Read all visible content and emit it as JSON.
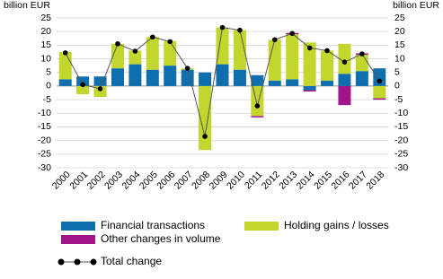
{
  "chart_data": {
    "type": "bar",
    "stacked": true,
    "y_label": "billion EUR",
    "y2_label": "billion EUR",
    "categories": [
      "2000",
      "2001",
      "2002",
      "2003",
      "2004",
      "2005",
      "2006",
      "2007",
      "2008",
      "2009",
      "2010",
      "2011",
      "2012",
      "2013",
      "2014",
      "2015",
      "2016",
      "2017",
      "2018"
    ],
    "series": [
      {
        "name": "Financial transactions",
        "color": "#0f6fae",
        "kind": "bar",
        "values": [
          2.5,
          3.5,
          3.5,
          6.5,
          8,
          6,
          7.5,
          6,
          5,
          8,
          6,
          4,
          2,
          2.5,
          -1.5,
          2,
          4.5,
          5.5,
          6.5
        ]
      },
      {
        "name": "Holding gains / losses",
        "color": "#c2d62e",
        "kind": "bar",
        "values": [
          10,
          -3,
          -4,
          9,
          5,
          12,
          9,
          0.5,
          -23.5,
          13.5,
          14.5,
          -11,
          15,
          16.5,
          16,
          11,
          11,
          6,
          -4.5
        ]
      },
      {
        "name": "Other changes in volume",
        "color": "#a0168a",
        "kind": "bar",
        "values": [
          0,
          0,
          0,
          0,
          0,
          0,
          0,
          0,
          0,
          0,
          0,
          -0.5,
          0,
          0.5,
          -0.5,
          0,
          -7,
          0.5,
          -0.5
        ]
      },
      {
        "name": "Total change",
        "color": "#000000",
        "kind": "line",
        "values": [
          12.2,
          0.5,
          -1,
          15.5,
          12.8,
          18,
          16.3,
          6.5,
          -18.5,
          21.5,
          20.5,
          -7.3,
          17,
          19.3,
          14,
          13,
          8.8,
          11.8,
          1.8
        ]
      }
    ],
    "ylim": [
      -30,
      25
    ],
    "yticks": [
      -30,
      -25,
      -20,
      -15,
      -10,
      -5,
      0,
      5,
      10,
      15,
      20,
      25
    ],
    "y2lim": [
      -30,
      25
    ],
    "y2ticks": [
      -30,
      -25,
      -20,
      -15,
      -10,
      -5,
      0,
      5,
      10,
      15,
      20,
      25
    ],
    "grid": true
  }
}
